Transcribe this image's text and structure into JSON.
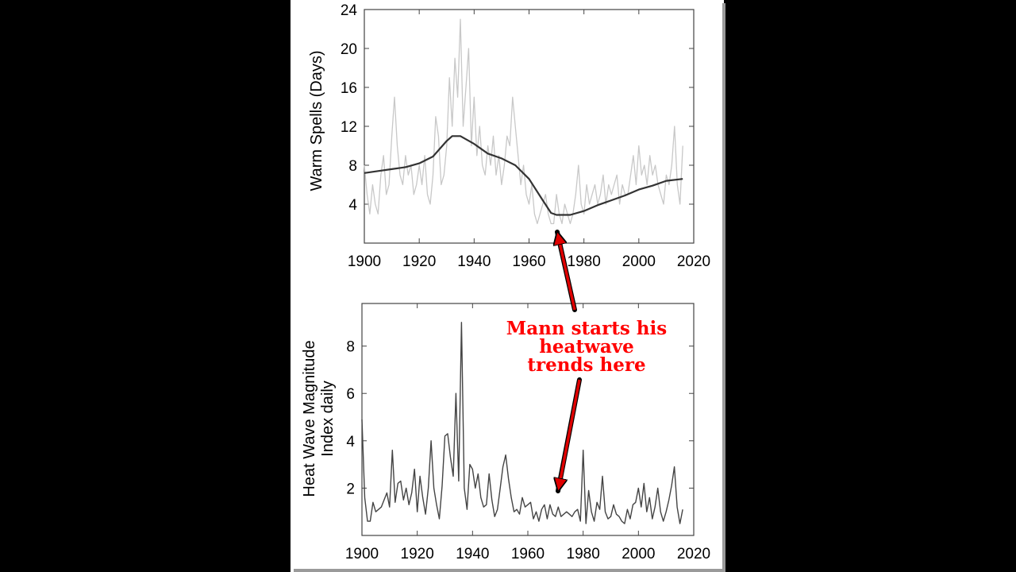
{
  "colors": {
    "background": "#000000",
    "panel": "#ffffff",
    "raw_series": "#c8c8c8",
    "smooth_series": "#333333",
    "hwmi_series": "#444444",
    "annotation": "#ff0000",
    "arrow_fill": "#e00000",
    "arrow_outline": "#000000"
  },
  "annotation": {
    "line1": "Mann starts his",
    "line2": "heatwave",
    "line3": "trends here"
  },
  "chart_data": [
    {
      "type": "line",
      "title": "",
      "xlabel": "",
      "ylabel": "Warm Spells (Days)",
      "xlim": [
        1900,
        2020
      ],
      "ylim": [
        0,
        24
      ],
      "x_ticks": [
        1900,
        1920,
        1940,
        1960,
        1980,
        2000,
        2020
      ],
      "y_ticks": [
        4,
        8,
        12,
        16,
        20,
        24
      ],
      "grid": false,
      "series": [
        {
          "style": "raw",
          "x": [
            1900,
            1901,
            1902,
            1903,
            1904,
            1905,
            1906,
            1907,
            1908,
            1909,
            1910,
            1911,
            1912,
            1913,
            1914,
            1915,
            1916,
            1917,
            1918,
            1919,
            1920,
            1921,
            1922,
            1923,
            1924,
            1925,
            1926,
            1927,
            1928,
            1929,
            1930,
            1931,
            1932,
            1933,
            1934,
            1935,
            1936,
            1937,
            1938,
            1939,
            1940,
            1941,
            1942,
            1943,
            1944,
            1945,
            1946,
            1947,
            1948,
            1949,
            1950,
            1951,
            1952,
            1953,
            1954,
            1955,
            1956,
            1957,
            1958,
            1959,
            1960,
            1961,
            1962,
            1963,
            1964,
            1965,
            1966,
            1967,
            1968,
            1969,
            1970,
            1971,
            1972,
            1973,
            1974,
            1975,
            1976,
            1977,
            1978,
            1979,
            1980,
            1981,
            1982,
            1983,
            1984,
            1985,
            1986,
            1987,
            1988,
            1989,
            1990,
            1991,
            1992,
            1993,
            1994,
            1995,
            1996,
            1997,
            1998,
            1999,
            2000,
            2001,
            2002,
            2003,
            2004,
            2005,
            2006,
            2007,
            2008,
            2009,
            2010,
            2011,
            2012,
            2013,
            2014,
            2015,
            2016
          ],
          "y": [
            8,
            5,
            3,
            6,
            4,
            3,
            7,
            9,
            5,
            6,
            11,
            15,
            10,
            7,
            6,
            9,
            7,
            8,
            5,
            6,
            8,
            6,
            9,
            5,
            4,
            7,
            13,
            11,
            6,
            7,
            10,
            17,
            12,
            19,
            15,
            23,
            12,
            16,
            20,
            10,
            15,
            9,
            12,
            8,
            7,
            10,
            8,
            11,
            7,
            9,
            6,
            8,
            11,
            10,
            15,
            12,
            9,
            6,
            8,
            5,
            4,
            6,
            3,
            2,
            3,
            4,
            5,
            3,
            2,
            2,
            5,
            3,
            2,
            4,
            3,
            2,
            3,
            5,
            8,
            4,
            3,
            6,
            4,
            5,
            6,
            4,
            5,
            7,
            4,
            6,
            5,
            6,
            7,
            4,
            6,
            5,
            5,
            7,
            9,
            6,
            10,
            7,
            8,
            6,
            9,
            7,
            8,
            6,
            5,
            4,
            7,
            6,
            8,
            12,
            6,
            4,
            10
          ]
        },
        {
          "style": "smoothed",
          "x": [
            1900,
            1905,
            1910,
            1915,
            1920,
            1925,
            1930,
            1932,
            1935,
            1940,
            1945,
            1950,
            1955,
            1960,
            1965,
            1968,
            1970,
            1972,
            1975,
            1980,
            1985,
            1990,
            1995,
            2000,
            2005,
            2010,
            2016
          ],
          "y": [
            7.2,
            7.4,
            7.6,
            7.8,
            8.2,
            8.9,
            10.5,
            11.0,
            11.0,
            10.2,
            9.2,
            8.7,
            8.0,
            6.6,
            4.4,
            3.1,
            2.9,
            2.9,
            2.9,
            3.3,
            3.9,
            4.4,
            4.9,
            5.5,
            5.9,
            6.4,
            6.6
          ]
        }
      ]
    },
    {
      "type": "line",
      "title": "",
      "xlabel": "",
      "ylabel": "Heat Wave Magnitude Index daily",
      "xlim": [
        1900,
        2020
      ],
      "ylim": [
        0,
        9.8
      ],
      "x_ticks": [
        1900,
        1920,
        1940,
        1960,
        1980,
        2000,
        2020
      ],
      "y_ticks": [
        2,
        4,
        6,
        8
      ],
      "grid": false,
      "series": [
        {
          "style": "hwmi",
          "x": [
            1900,
            1901,
            1902,
            1903,
            1904,
            1905,
            1906,
            1907,
            1908,
            1909,
            1910,
            1911,
            1912,
            1913,
            1914,
            1915,
            1916,
            1917,
            1918,
            1919,
            1920,
            1921,
            1922,
            1923,
            1924,
            1925,
            1926,
            1927,
            1928,
            1929,
            1930,
            1931,
            1932,
            1933,
            1934,
            1935,
            1936,
            1937,
            1938,
            1939,
            1940,
            1941,
            1942,
            1943,
            1944,
            1945,
            1946,
            1947,
            1948,
            1949,
            1950,
            1951,
            1952,
            1953,
            1954,
            1955,
            1956,
            1957,
            1958,
            1959,
            1960,
            1961,
            1962,
            1963,
            1964,
            1965,
            1966,
            1967,
            1968,
            1969,
            1970,
            1971,
            1972,
            1973,
            1974,
            1975,
            1976,
            1977,
            1978,
            1979,
            1980,
            1981,
            1982,
            1983,
            1984,
            1985,
            1986,
            1987,
            1988,
            1989,
            1990,
            1991,
            1992,
            1993,
            1994,
            1995,
            1996,
            1997,
            1998,
            1999,
            2000,
            2001,
            2002,
            2003,
            2004,
            2005,
            2006,
            2007,
            2008,
            2009,
            2010,
            2011,
            2012,
            2013,
            2014,
            2015,
            2016
          ],
          "y": [
            4.9,
            1.6,
            0.6,
            0.6,
            1.4,
            1.0,
            1.1,
            1.2,
            1.5,
            1.8,
            1.2,
            3.6,
            1.4,
            2.2,
            2.3,
            1.5,
            2.0,
            1.3,
            1.8,
            2.8,
            1.0,
            2.5,
            1.6,
            0.9,
            2.0,
            4.0,
            2.0,
            1.3,
            0.7,
            2.1,
            4.2,
            4.3,
            3.3,
            2.5,
            6.0,
            2.3,
            9.0,
            2.0,
            1.1,
            3.0,
            2.8,
            2.0,
            2.6,
            1.6,
            1.2,
            1.3,
            2.6,
            1.5,
            0.8,
            1.1,
            2.0,
            2.9,
            3.4,
            2.4,
            1.6,
            1.0,
            1.1,
            0.9,
            1.6,
            1.2,
            1.3,
            1.4,
            0.7,
            1.0,
            0.6,
            1.1,
            1.3,
            0.7,
            1.3,
            0.9,
            0.8,
            1.2,
            0.8,
            0.9,
            1.0,
            0.9,
            0.8,
            1.0,
            1.1,
            0.6,
            3.6,
            0.5,
            1.9,
            1.0,
            0.6,
            1.4,
            1.1,
            2.5,
            1.0,
            0.7,
            0.8,
            1.3,
            0.9,
            0.8,
            0.6,
            0.5,
            1.1,
            0.7,
            1.3,
            1.4,
            2.0,
            1.2,
            2.2,
            1.0,
            1.6,
            0.7,
            1.2,
            2.0,
            1.0,
            0.6,
            1.0,
            1.5,
            2.1,
            2.9,
            1.2,
            0.5,
            1.1
          ]
        }
      ]
    }
  ]
}
